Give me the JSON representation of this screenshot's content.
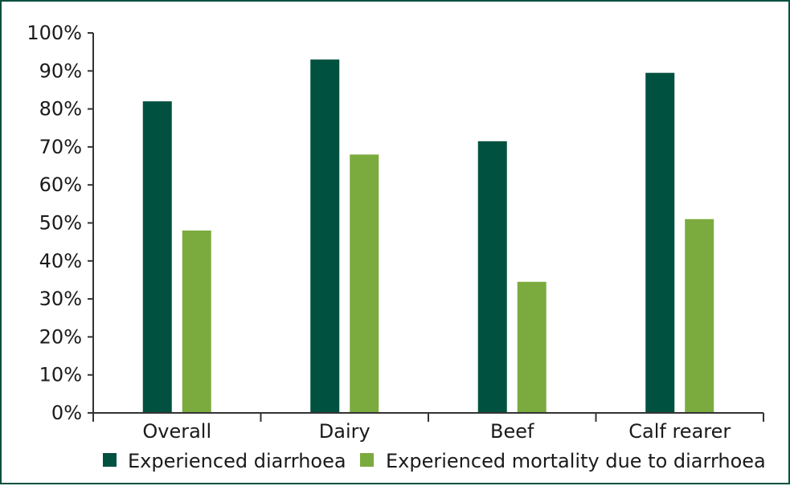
{
  "chart_data": {
    "type": "bar",
    "categories": [
      "Overall",
      "Dairy",
      "Beef",
      "Calf rearer"
    ],
    "series": [
      {
        "name": "Experienced diarrhoea",
        "values": [
          82,
          93,
          71.5,
          89.5
        ],
        "color": "#00513f"
      },
      {
        "name": "Experienced mortality due to diarrhoea",
        "values": [
          48,
          68,
          34.5,
          51
        ],
        "color": "#7bab3f"
      }
    ],
    "yticks": [
      "0%",
      "10%",
      "20%",
      "30%",
      "40%",
      "50%",
      "60%",
      "70%",
      "80%",
      "90%",
      "100%"
    ],
    "ylim": [
      0,
      100
    ],
    "title": "",
    "xlabel": "",
    "ylabel": "",
    "grid": false,
    "legend_position": "bottom"
  }
}
